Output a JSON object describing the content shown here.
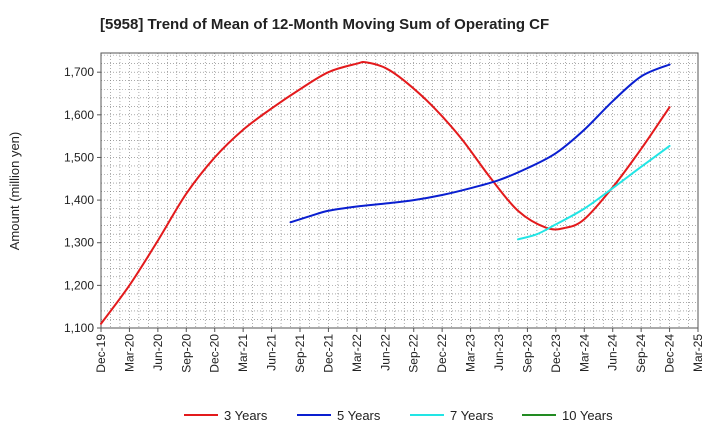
{
  "chart_data": {
    "type": "line",
    "title": "[5958]  Trend of Mean of 12-Month Moving Sum of Operating CF",
    "xlabel": "",
    "ylabel": "Amount (million yen)",
    "ylim": [
      1100,
      1745
    ],
    "yticks": [
      1100,
      1200,
      1300,
      1400,
      1500,
      1600,
      1700
    ],
    "ytick_labels": [
      "1,100",
      "1,200",
      "1,300",
      "1,400",
      "1,500",
      "1,600",
      "1,700"
    ],
    "x_range": [
      0,
      63
    ],
    "xtick_labels": [
      "Dec-19",
      "Mar-20",
      "Jun-20",
      "Sep-20",
      "Dec-20",
      "Mar-21",
      "Jun-21",
      "Sep-21",
      "Dec-21",
      "Mar-22",
      "Jun-22",
      "Sep-22",
      "Dec-22",
      "Mar-23",
      "Jun-23",
      "Sep-23",
      "Dec-23",
      "Mar-24",
      "Jun-24",
      "Sep-24",
      "Dec-24",
      "Mar-25"
    ],
    "grid": true,
    "legend_position": "bottom",
    "series": [
      {
        "name": "3 Years",
        "color": "#e31a1c",
        "points": [
          [
            0,
            1110
          ],
          [
            3,
            1200
          ],
          [
            6,
            1305
          ],
          [
            9,
            1415
          ],
          [
            12,
            1500
          ],
          [
            15,
            1565
          ],
          [
            18,
            1615
          ],
          [
            21,
            1660
          ],
          [
            24,
            1700
          ],
          [
            27,
            1720
          ],
          [
            28,
            1723
          ],
          [
            30,
            1710
          ],
          [
            32,
            1680
          ],
          [
            35,
            1620
          ],
          [
            38,
            1545
          ],
          [
            41,
            1455
          ],
          [
            44,
            1375
          ],
          [
            47,
            1335
          ],
          [
            49,
            1335
          ],
          [
            51,
            1355
          ],
          [
            54,
            1430
          ],
          [
            57,
            1520
          ],
          [
            60,
            1618
          ]
        ]
      },
      {
        "name": "5 Years",
        "color": "#0a1fd0",
        "points": [
          [
            20,
            1348
          ],
          [
            22,
            1362
          ],
          [
            24,
            1375
          ],
          [
            27,
            1385
          ],
          [
            30,
            1392
          ],
          [
            33,
            1400
          ],
          [
            36,
            1412
          ],
          [
            39,
            1428
          ],
          [
            42,
            1447
          ],
          [
            45,
            1475
          ],
          [
            48,
            1510
          ],
          [
            51,
            1565
          ],
          [
            54,
            1632
          ],
          [
            57,
            1690
          ],
          [
            60,
            1718
          ]
        ]
      },
      {
        "name": "7 Years",
        "color": "#22e5e5",
        "points": [
          [
            44,
            1308
          ],
          [
            46,
            1320
          ],
          [
            48,
            1343
          ],
          [
            51,
            1380
          ],
          [
            54,
            1428
          ],
          [
            57,
            1478
          ],
          [
            60,
            1527
          ]
        ]
      },
      {
        "name": "10 Years",
        "color": "#228b22",
        "points": []
      }
    ]
  }
}
